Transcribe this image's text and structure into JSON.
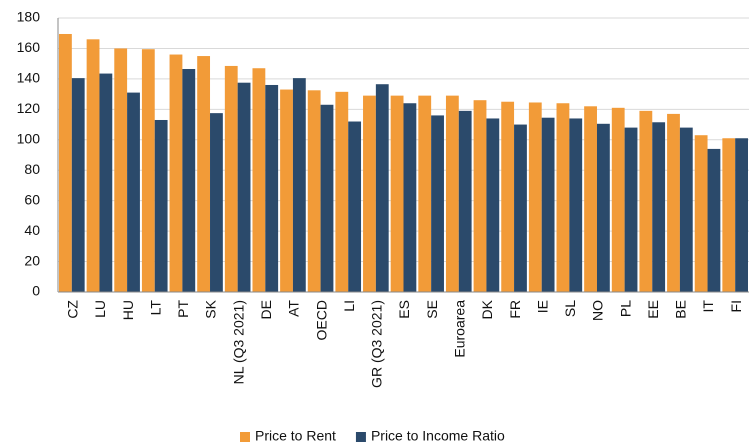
{
  "chart_data": {
    "type": "bar",
    "categories": [
      "CZ",
      "LU",
      "HU",
      "LT",
      "PT",
      "SK",
      "NL (Q3 2021)",
      "DE",
      "AT",
      "OECD",
      "LI",
      "GR (Q3 2021)",
      "ES",
      "SE",
      "Euroarea",
      "DK",
      "FR",
      "IE",
      "SL",
      "NO",
      "PL",
      "EE",
      "BE",
      "IT",
      "FI"
    ],
    "series": [
      {
        "name": "Price to Rent",
        "color": "#f29b38",
        "values": [
          169.5,
          166,
          160,
          159.5,
          156,
          155,
          148.5,
          147,
          133,
          132.5,
          131.5,
          129,
          129,
          129,
          129,
          126,
          125,
          124.5,
          124,
          122,
          121,
          119,
          117,
          103,
          101
        ]
      },
      {
        "name": "Price to Income Ratio",
        "color": "#2b4a6b",
        "values": [
          140.5,
          143.5,
          131,
          113,
          146.5,
          117.5,
          137.5,
          136,
          140.5,
          123,
          112,
          136.5,
          124,
          116,
          119,
          114,
          110,
          114.5,
          114,
          110.5,
          108,
          111.5,
          108,
          94,
          101
        ]
      }
    ],
    "ylim": [
      0,
      180
    ],
    "yticks": [
      0,
      20,
      40,
      60,
      80,
      100,
      120,
      140,
      160,
      180
    ],
    "grid": true,
    "legend": "bottom"
  }
}
